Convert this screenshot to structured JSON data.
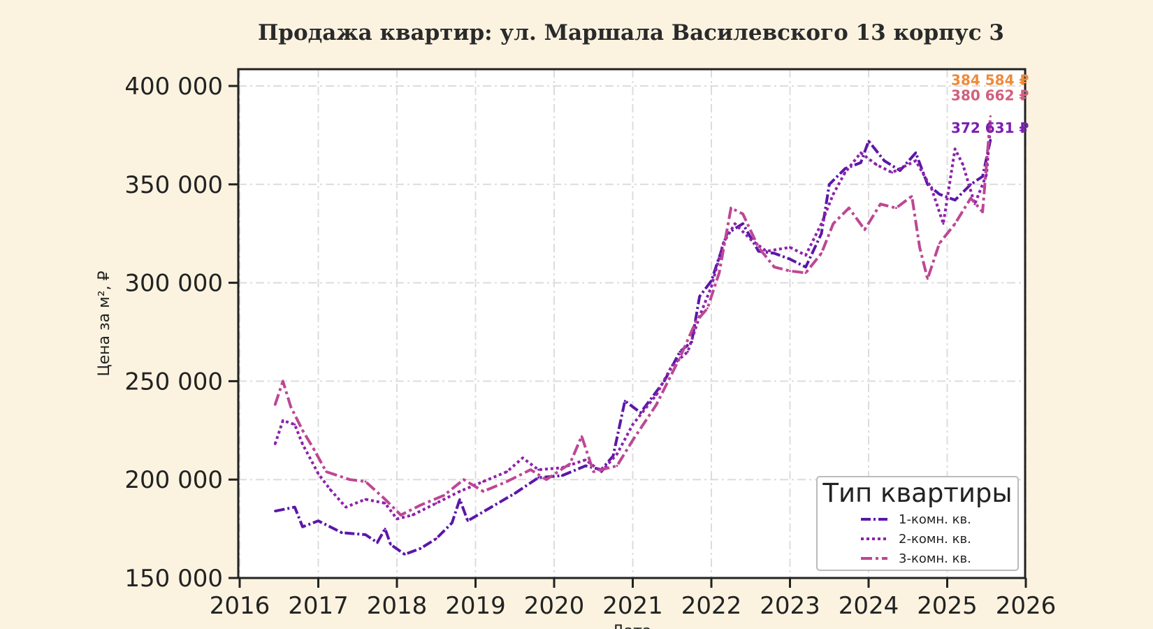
{
  "chart_data": {
    "type": "line",
    "title": "Продажа квартир: ул. Маршала Василевского 13 корпус 3",
    "xlabel": "Дата",
    "ylabel": "Цена за м², ₽",
    "xlim": [
      2016,
      2026
    ],
    "ylim": [
      150000,
      400000
    ],
    "x_ticks": [
      "2016",
      "2017",
      "2018",
      "2019",
      "2020",
      "2021",
      "2022",
      "2023",
      "2024",
      "2025",
      "2026"
    ],
    "y_ticks": [
      "150 000",
      "200 000",
      "250 000",
      "300 000",
      "350 000",
      "400 000"
    ],
    "grid": true,
    "legend": {
      "title": "Тип квартиры",
      "position": "bottom-right"
    },
    "series": [
      {
        "name": "1-комн. кв.",
        "color": "#5b17a8",
        "dash": "dashdot-dense",
        "end_label": "372 631 ₽",
        "points": [
          [
            2016.45,
            184000
          ],
          [
            2016.7,
            186000
          ],
          [
            2016.8,
            176000
          ],
          [
            2017.0,
            179000
          ],
          [
            2017.3,
            173000
          ],
          [
            2017.6,
            172000
          ],
          [
            2017.75,
            168000
          ],
          [
            2017.85,
            175000
          ],
          [
            2017.92,
            167000
          ],
          [
            2018.1,
            162000
          ],
          [
            2018.3,
            165000
          ],
          [
            2018.5,
            170000
          ],
          [
            2018.7,
            178000
          ],
          [
            2018.8,
            190000
          ],
          [
            2018.9,
            179000
          ],
          [
            2019.2,
            186000
          ],
          [
            2019.5,
            193000
          ],
          [
            2019.8,
            201000
          ],
          [
            2020.1,
            202000
          ],
          [
            2020.4,
            207000
          ],
          [
            2020.6,
            205000
          ],
          [
            2020.75,
            212000
          ],
          [
            2020.9,
            240000
          ],
          [
            2021.1,
            234000
          ],
          [
            2021.4,
            250000
          ],
          [
            2021.6,
            265000
          ],
          [
            2021.75,
            270000
          ],
          [
            2021.85,
            293000
          ],
          [
            2022.0,
            301000
          ],
          [
            2022.2,
            325000
          ],
          [
            2022.4,
            330000
          ],
          [
            2022.6,
            316000
          ],
          [
            2022.8,
            315000
          ],
          [
            2023.0,
            312000
          ],
          [
            2023.2,
            308000
          ],
          [
            2023.4,
            325000
          ],
          [
            2023.5,
            350000
          ],
          [
            2023.7,
            358000
          ],
          [
            2023.9,
            361000
          ],
          [
            2024.0,
            372000
          ],
          [
            2024.2,
            362000
          ],
          [
            2024.4,
            357000
          ],
          [
            2024.6,
            366000
          ],
          [
            2024.75,
            350000
          ],
          [
            2024.9,
            345000
          ],
          [
            2025.1,
            342000
          ],
          [
            2025.3,
            350000
          ],
          [
            2025.45,
            354000
          ],
          [
            2025.55,
            372631
          ]
        ]
      },
      {
        "name": "2-комн. кв.",
        "color": "#8e22aa",
        "dash": "dotted",
        "end_label": "380 662 ₽",
        "points": [
          [
            2016.45,
            218000
          ],
          [
            2016.55,
            230000
          ],
          [
            2016.7,
            228000
          ],
          [
            2016.8,
            218000
          ],
          [
            2017.0,
            203000
          ],
          [
            2017.15,
            195000
          ],
          [
            2017.35,
            186000
          ],
          [
            2017.6,
            190000
          ],
          [
            2017.85,
            188000
          ],
          [
            2018.0,
            180000
          ],
          [
            2018.2,
            182000
          ],
          [
            2018.5,
            188000
          ],
          [
            2018.8,
            194000
          ],
          [
            2019.1,
            199000
          ],
          [
            2019.4,
            204000
          ],
          [
            2019.6,
            211000
          ],
          [
            2019.8,
            205000
          ],
          [
            2020.1,
            206000
          ],
          [
            2020.4,
            210000
          ],
          [
            2020.6,
            204000
          ],
          [
            2020.8,
            213000
          ],
          [
            2021.0,
            228000
          ],
          [
            2021.3,
            243000
          ],
          [
            2021.5,
            258000
          ],
          [
            2021.7,
            265000
          ],
          [
            2021.85,
            283000
          ],
          [
            2022.0,
            298000
          ],
          [
            2022.15,
            320000
          ],
          [
            2022.3,
            330000
          ],
          [
            2022.5,
            322000
          ],
          [
            2022.7,
            316000
          ],
          [
            2023.0,
            318000
          ],
          [
            2023.2,
            314000
          ],
          [
            2023.4,
            330000
          ],
          [
            2023.55,
            345000
          ],
          [
            2023.7,
            356000
          ],
          [
            2023.9,
            366000
          ],
          [
            2024.1,
            360000
          ],
          [
            2024.3,
            356000
          ],
          [
            2024.6,
            362000
          ],
          [
            2024.8,
            348000
          ],
          [
            2024.95,
            330000
          ],
          [
            2025.1,
            368000
          ],
          [
            2025.2,
            360000
          ],
          [
            2025.35,
            340000
          ],
          [
            2025.5,
            355000
          ],
          [
            2025.55,
            380662
          ]
        ]
      },
      {
        "name": "3-комн. кв.",
        "color": "#bd4794",
        "dash": "dashdot",
        "end_label": "384 584 ₽",
        "points": [
          [
            2016.45,
            238000
          ],
          [
            2016.55,
            250000
          ],
          [
            2016.65,
            237000
          ],
          [
            2016.8,
            225000
          ],
          [
            2016.95,
            215000
          ],
          [
            2017.1,
            204000
          ],
          [
            2017.4,
            200000
          ],
          [
            2017.6,
            199000
          ],
          [
            2017.85,
            190000
          ],
          [
            2018.05,
            182000
          ],
          [
            2018.3,
            187000
          ],
          [
            2018.6,
            192000
          ],
          [
            2018.85,
            200000
          ],
          [
            2019.1,
            194000
          ],
          [
            2019.4,
            199000
          ],
          [
            2019.7,
            205000
          ],
          [
            2019.9,
            200000
          ],
          [
            2020.2,
            208000
          ],
          [
            2020.35,
            222000
          ],
          [
            2020.5,
            204000
          ],
          [
            2020.8,
            207000
          ],
          [
            2021.0,
            220000
          ],
          [
            2021.3,
            238000
          ],
          [
            2021.6,
            262000
          ],
          [
            2021.8,
            280000
          ],
          [
            2021.95,
            287000
          ],
          [
            2022.1,
            305000
          ],
          [
            2022.25,
            338000
          ],
          [
            2022.4,
            335000
          ],
          [
            2022.6,
            318000
          ],
          [
            2022.8,
            308000
          ],
          [
            2023.0,
            306000
          ],
          [
            2023.2,
            305000
          ],
          [
            2023.4,
            315000
          ],
          [
            2023.55,
            330000
          ],
          [
            2023.75,
            338000
          ],
          [
            2023.95,
            327000
          ],
          [
            2024.15,
            340000
          ],
          [
            2024.35,
            338000
          ],
          [
            2024.55,
            344000
          ],
          [
            2024.65,
            318000
          ],
          [
            2024.75,
            302000
          ],
          [
            2024.9,
            320000
          ],
          [
            2025.1,
            330000
          ],
          [
            2025.3,
            343000
          ],
          [
            2025.45,
            336000
          ],
          [
            2025.55,
            384584
          ]
        ]
      }
    ]
  }
}
